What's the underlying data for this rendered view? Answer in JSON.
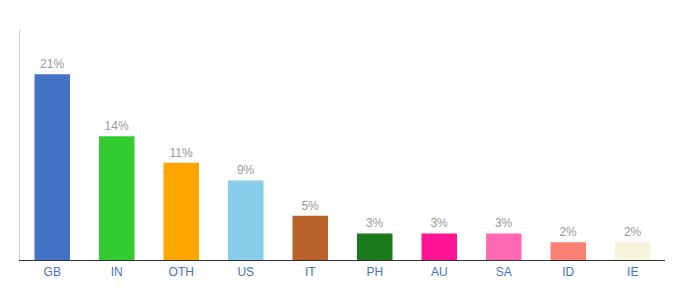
{
  "chart_data": {
    "type": "bar",
    "categories": [
      "GB",
      "IN",
      "OTH",
      "US",
      "IT",
      "PH",
      "AU",
      "SA",
      "ID",
      "IE"
    ],
    "values": [
      21,
      14,
      11,
      9,
      5,
      3,
      3,
      3,
      2,
      2
    ],
    "value_labels": [
      "21%",
      "14%",
      "11%",
      "9%",
      "5%",
      "3%",
      "3%",
      "3%",
      "2%",
      "2%"
    ],
    "colors": [
      "#4472C4",
      "#33CC33",
      "#FFA500",
      "#87CEEB",
      "#B8622A",
      "#1A7A1A",
      "#FF1493",
      "#FF69B4",
      "#FA8072",
      "#F5F5DC"
    ],
    "ylim": [
      0,
      26
    ],
    "data_labels": true,
    "tick_labels": "x",
    "grid": false
  }
}
